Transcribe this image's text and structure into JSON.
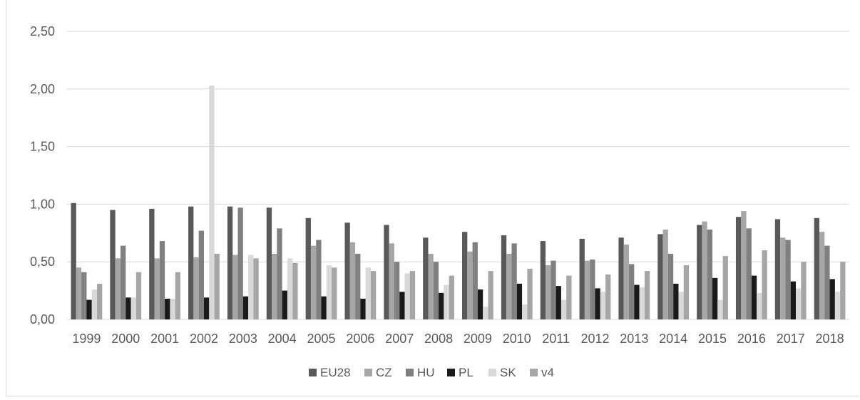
{
  "chart_data": {
    "type": "bar",
    "title": "",
    "xlabel": "",
    "ylabel": "",
    "ylim": [
      0,
      2.5
    ],
    "yticks": [
      "0,00",
      "0,50",
      "1,00",
      "1,50",
      "2,00",
      "2,50"
    ],
    "grid": true,
    "legend_position": "bottom",
    "categories": [
      "1999",
      "2000",
      "2001",
      "2002",
      "2003",
      "2004",
      "2005",
      "2006",
      "2007",
      "2008",
      "2009",
      "2010",
      "2011",
      "2012",
      "2013",
      "2014",
      "2015",
      "2016",
      "2017",
      "2018"
    ],
    "series": [
      {
        "name": "EU28",
        "color": "#595959",
        "values": [
          1.01,
          0.95,
          0.96,
          0.98,
          0.98,
          0.97,
          0.88,
          0.84,
          0.82,
          0.71,
          0.76,
          0.73,
          0.68,
          0.7,
          0.71,
          0.74,
          0.82,
          0.89,
          0.87,
          0.88
        ]
      },
      {
        "name": "CZ",
        "color": "#a6a6a6",
        "values": [
          0.45,
          0.53,
          0.53,
          0.54,
          0.56,
          0.57,
          0.64,
          0.67,
          0.66,
          0.57,
          0.59,
          0.57,
          0.47,
          0.51,
          0.65,
          0.78,
          0.85,
          0.94,
          0.71,
          0.76
        ]
      },
      {
        "name": "HU",
        "color": "#808080",
        "values": [
          0.41,
          0.64,
          0.68,
          0.77,
          0.97,
          0.79,
          0.69,
          0.57,
          0.5,
          0.5,
          0.67,
          0.66,
          0.51,
          0.52,
          0.48,
          0.57,
          0.78,
          0.79,
          0.69,
          0.64
        ]
      },
      {
        "name": "PL",
        "color": "#1a1a1a",
        "values": [
          0.17,
          0.19,
          0.18,
          0.19,
          0.2,
          0.25,
          0.2,
          0.18,
          0.24,
          0.23,
          0.26,
          0.31,
          0.29,
          0.27,
          0.3,
          0.31,
          0.36,
          0.38,
          0.33,
          0.35
        ]
      },
      {
        "name": "SK",
        "color": "#d9d9d9",
        "values": [
          0.26,
          0.19,
          0.18,
          2.03,
          0.56,
          0.53,
          0.47,
          0.45,
          0.4,
          0.3,
          0.11,
          0.13,
          0.17,
          0.24,
          0.28,
          0.24,
          0.17,
          0.23,
          0.27,
          0.24
        ]
      },
      {
        "name": "v4",
        "color": "#a6a6a6",
        "values": [
          0.31,
          0.41,
          0.41,
          0.57,
          0.53,
          0.49,
          0.45,
          0.42,
          0.42,
          0.38,
          0.42,
          0.44,
          0.38,
          0.39,
          0.42,
          0.47,
          0.55,
          0.6,
          0.5,
          0.5
        ]
      }
    ]
  }
}
